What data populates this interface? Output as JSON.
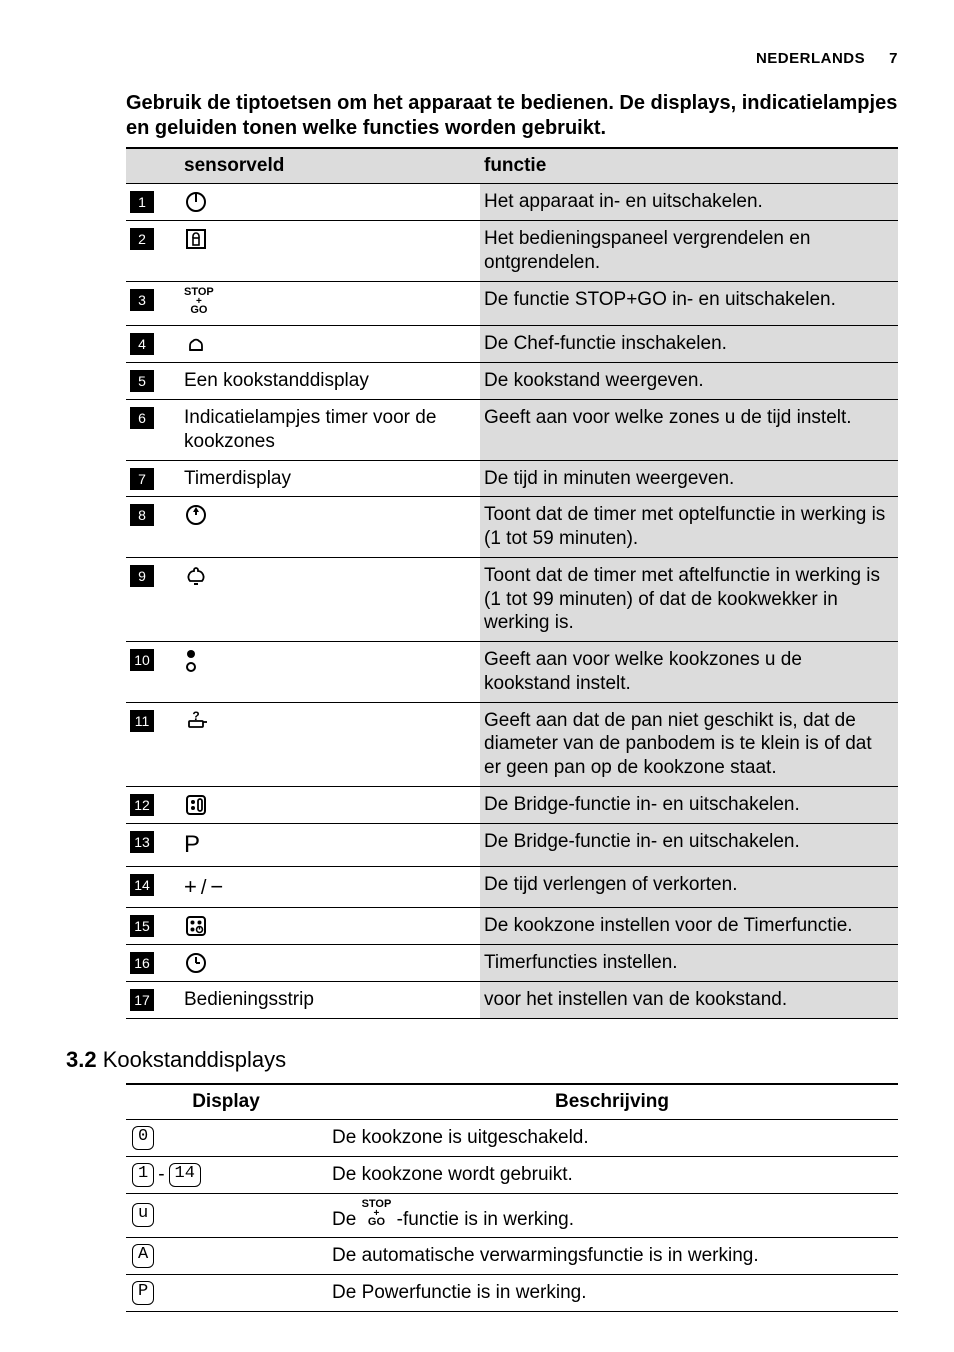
{
  "header": {
    "lang": "NEDERLANDS",
    "page": "7"
  },
  "intro": "Gebruik de tiptoetsen om het apparaat te bedienen. De displays, indicatielampjes en geluiden tonen welke functies worden gebruikt.",
  "controls": {
    "head_sensor": "sensorveld",
    "head_func": "functie",
    "rows": [
      {
        "num": "1",
        "icon": "power",
        "sensor": "",
        "func": "Het apparaat in- en uitschakelen."
      },
      {
        "num": "2",
        "icon": "lock",
        "sensor": "",
        "func": "Het bedieningspaneel vergrendelen en ontgrendelen."
      },
      {
        "num": "3",
        "icon": "stopgo",
        "sensor": "",
        "func": "De functie STOP+GO in- en uitschakelen."
      },
      {
        "num": "4",
        "icon": "chef",
        "sensor": "",
        "func": "De Chef-functie inschakelen."
      },
      {
        "num": "5",
        "icon": "",
        "sensor": "Een kookstanddisplay",
        "func": "De kookstand weergeven."
      },
      {
        "num": "6",
        "icon": "",
        "sensor": "Indicatielampjes timer voor de kookzones",
        "func": "Geeft aan voor welke zones u de tijd instelt."
      },
      {
        "num": "7",
        "icon": "",
        "sensor": "Timerdisplay",
        "func": "De tijd in minuten weergeven."
      },
      {
        "num": "8",
        "icon": "countup",
        "sensor": "",
        "func": "Toont dat de timer met optelfunctie in werking is (1 tot 59 minuten)."
      },
      {
        "num": "9",
        "icon": "bell",
        "sensor": "",
        "func": "Toont dat de timer met aftelfunctie in werking is (1 tot 99 minuten) of dat de kookwekker in werking is."
      },
      {
        "num": "10",
        "icon": "twodots",
        "sensor": "",
        "func": "Geeft aan voor welke kookzones u de kookstand instelt."
      },
      {
        "num": "11",
        "icon": "pan",
        "sensor": "",
        "func": "Geeft aan dat de pan niet geschikt is, dat de diameter van de panbodem is te klein is of dat er geen pan op de kookzone staat."
      },
      {
        "num": "12",
        "icon": "bridge",
        "sensor": "",
        "func": "De Bridge-functie in- en uitschakelen."
      },
      {
        "num": "13",
        "icon": "pboost",
        "sensor": "",
        "func": "De Bridge-functie in- en uitschakelen."
      },
      {
        "num": "14",
        "icon": "plusminus",
        "sensor": "",
        "func": "De tijd verlengen of verkorten."
      },
      {
        "num": "15",
        "icon": "zonetimer",
        "sensor": "",
        "func": "De kookzone instellen voor de Timerfunctie."
      },
      {
        "num": "16",
        "icon": "clock",
        "sensor": "",
        "func": "Timerfuncties instellen."
      },
      {
        "num": "17",
        "icon": "",
        "sensor": "Bedieningsstrip",
        "func": "voor het instellen van de kookstand."
      }
    ]
  },
  "section_title_num": "3.2",
  "section_title_text": "Kookstanddisplays",
  "displays": {
    "head_display": "Display",
    "head_desc": "Beschrijving",
    "rows": [
      {
        "glyph": "0",
        "desc_pre": "De kookzone is uitgeschakeld.",
        "desc_post": ""
      },
      {
        "glyph": "range",
        "desc_pre": "De kookzone wordt gebruikt.",
        "desc_post": ""
      },
      {
        "glyph": "u",
        "desc_pre": "De ",
        "desc_mid_icon": "stopgo",
        "desc_post": " -functie is in werking."
      },
      {
        "glyph": "A",
        "desc_pre": "De automatische verwarmingsfunctie is in werking.",
        "desc_post": ""
      },
      {
        "glyph": "P",
        "desc_pre": "De Powerfunctie is in werking.",
        "desc_post": ""
      }
    ],
    "range_from": "1",
    "range_to": "14",
    "u_glyph_char": "u",
    "a_glyph_char": "A",
    "p_glyph_char": "P",
    "zero_glyph_char": "0"
  }
}
